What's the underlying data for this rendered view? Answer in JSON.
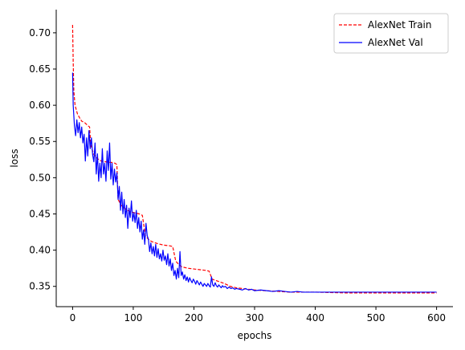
{
  "chart_data": {
    "type": "line",
    "title": "",
    "xlabel": "epochs",
    "ylabel": "loss",
    "xlim": [
      -27,
      627
    ],
    "ylim": [
      0.322,
      0.732
    ],
    "xticks": [
      0,
      100,
      200,
      300,
      400,
      500,
      600
    ],
    "xtick_labels": [
      "0",
      "100",
      "200",
      "300",
      "400",
      "500",
      "600"
    ],
    "yticks": [
      0.35,
      0.4,
      0.45,
      0.5,
      0.55,
      0.6,
      0.65,
      0.7
    ],
    "ytick_labels": [
      "0.35",
      "0.40",
      "0.45",
      "0.50",
      "0.55",
      "0.60",
      "0.65",
      "0.70"
    ],
    "grid": false,
    "legend": "top-right",
    "series": [
      {
        "name": "AlexNet Train",
        "color": "#ff0000",
        "style": "dashed",
        "x": [
          0,
          1,
          2,
          4,
          8,
          12,
          15,
          20,
          25,
          28,
          30,
          35,
          40,
          45,
          50,
          55,
          60,
          65,
          70,
          73,
          75,
          80,
          90,
          100,
          110,
          115,
          120,
          125,
          130,
          140,
          150,
          160,
          165,
          170,
          175,
          180,
          190,
          200,
          210,
          220,
          225,
          230,
          240,
          250,
          260,
          270,
          280,
          290,
          300,
          320,
          340,
          360,
          380,
          400,
          450,
          500,
          550,
          600
        ],
        "values": [
          0.711,
          0.66,
          0.62,
          0.6,
          0.588,
          0.582,
          0.578,
          0.576,
          0.572,
          0.57,
          0.545,
          0.532,
          0.527,
          0.524,
          0.522,
          0.522,
          0.521,
          0.521,
          0.52,
          0.518,
          0.47,
          0.462,
          0.455,
          0.452,
          0.45,
          0.448,
          0.42,
          0.415,
          0.412,
          0.409,
          0.407,
          0.406,
          0.405,
          0.385,
          0.38,
          0.377,
          0.375,
          0.374,
          0.373,
          0.372,
          0.371,
          0.36,
          0.357,
          0.354,
          0.35,
          0.348,
          0.347,
          0.346,
          0.345,
          0.344,
          0.343,
          0.342,
          0.342,
          0.342,
          0.341,
          0.341,
          0.341,
          0.341
        ]
      },
      {
        "name": "AlexNet Val",
        "color": "#0000ff",
        "style": "solid",
        "x": [
          0,
          1,
          3,
          5,
          7,
          9,
          11,
          13,
          15,
          17,
          19,
          21,
          23,
          25,
          27,
          29,
          31,
          33,
          35,
          37,
          39,
          41,
          43,
          45,
          47,
          49,
          51,
          53,
          55,
          57,
          59,
          61,
          63,
          65,
          67,
          69,
          71,
          73,
          75,
          77,
          79,
          81,
          83,
          85,
          87,
          89,
          91,
          93,
          95,
          97,
          99,
          101,
          103,
          105,
          107,
          109,
          111,
          113,
          115,
          117,
          119,
          121,
          123,
          125,
          127,
          129,
          131,
          133,
          135,
          137,
          139,
          141,
          143,
          145,
          147,
          149,
          151,
          153,
          155,
          157,
          159,
          161,
          163,
          165,
          167,
          169,
          171,
          173,
          175,
          177,
          179,
          181,
          183,
          185,
          187,
          189,
          191,
          193,
          195,
          197,
          199,
          201,
          203,
          205,
          207,
          209,
          211,
          213,
          215,
          217,
          219,
          221,
          223,
          225,
          227,
          229,
          231,
          233,
          235,
          237,
          239,
          241,
          243,
          245,
          247,
          249,
          252,
          255,
          258,
          261,
          264,
          267,
          270,
          275,
          280,
          285,
          290,
          295,
          300,
          310,
          320,
          330,
          340,
          350,
          360,
          370,
          380,
          400,
          450,
          500,
          550,
          600
        ],
        "values": [
          0.645,
          0.6,
          0.572,
          0.558,
          0.58,
          0.562,
          0.576,
          0.555,
          0.57,
          0.548,
          0.56,
          0.523,
          0.555,
          0.53,
          0.565,
          0.54,
          0.555,
          0.532,
          0.522,
          0.548,
          0.505,
          0.533,
          0.495,
          0.52,
          0.5,
          0.54,
          0.505,
          0.52,
          0.495,
          0.537,
          0.51,
          0.548,
          0.498,
          0.52,
          0.49,
          0.512,
          0.494,
          0.507,
          0.47,
          0.488,
          0.455,
          0.48,
          0.45,
          0.47,
          0.445,
          0.462,
          0.43,
          0.458,
          0.445,
          0.468,
          0.44,
          0.452,
          0.438,
          0.455,
          0.43,
          0.445,
          0.425,
          0.44,
          0.415,
          0.428,
          0.408,
          0.437,
          0.42,
          0.415,
          0.398,
          0.41,
          0.395,
          0.405,
          0.392,
          0.408,
          0.39,
          0.402,
          0.388,
          0.395,
          0.385,
          0.4,
          0.386,
          0.392,
          0.38,
          0.395,
          0.378,
          0.388,
          0.372,
          0.382,
          0.365,
          0.372,
          0.36,
          0.375,
          0.362,
          0.398,
          0.365,
          0.37,
          0.36,
          0.366,
          0.358,
          0.363,
          0.356,
          0.362,
          0.358,
          0.355,
          0.36,
          0.357,
          0.353,
          0.358,
          0.355,
          0.352,
          0.356,
          0.353,
          0.35,
          0.354,
          0.352,
          0.35,
          0.354,
          0.351,
          0.349,
          0.363,
          0.352,
          0.35,
          0.355,
          0.351,
          0.349,
          0.352,
          0.35,
          0.348,
          0.351,
          0.349,
          0.35,
          0.347,
          0.349,
          0.347,
          0.348,
          0.346,
          0.347,
          0.346,
          0.345,
          0.347,
          0.345,
          0.346,
          0.344,
          0.345,
          0.344,
          0.343,
          0.344,
          0.343,
          0.342,
          0.343,
          0.342,
          0.342,
          0.342,
          0.342,
          0.342,
          0.342
        ]
      }
    ]
  }
}
